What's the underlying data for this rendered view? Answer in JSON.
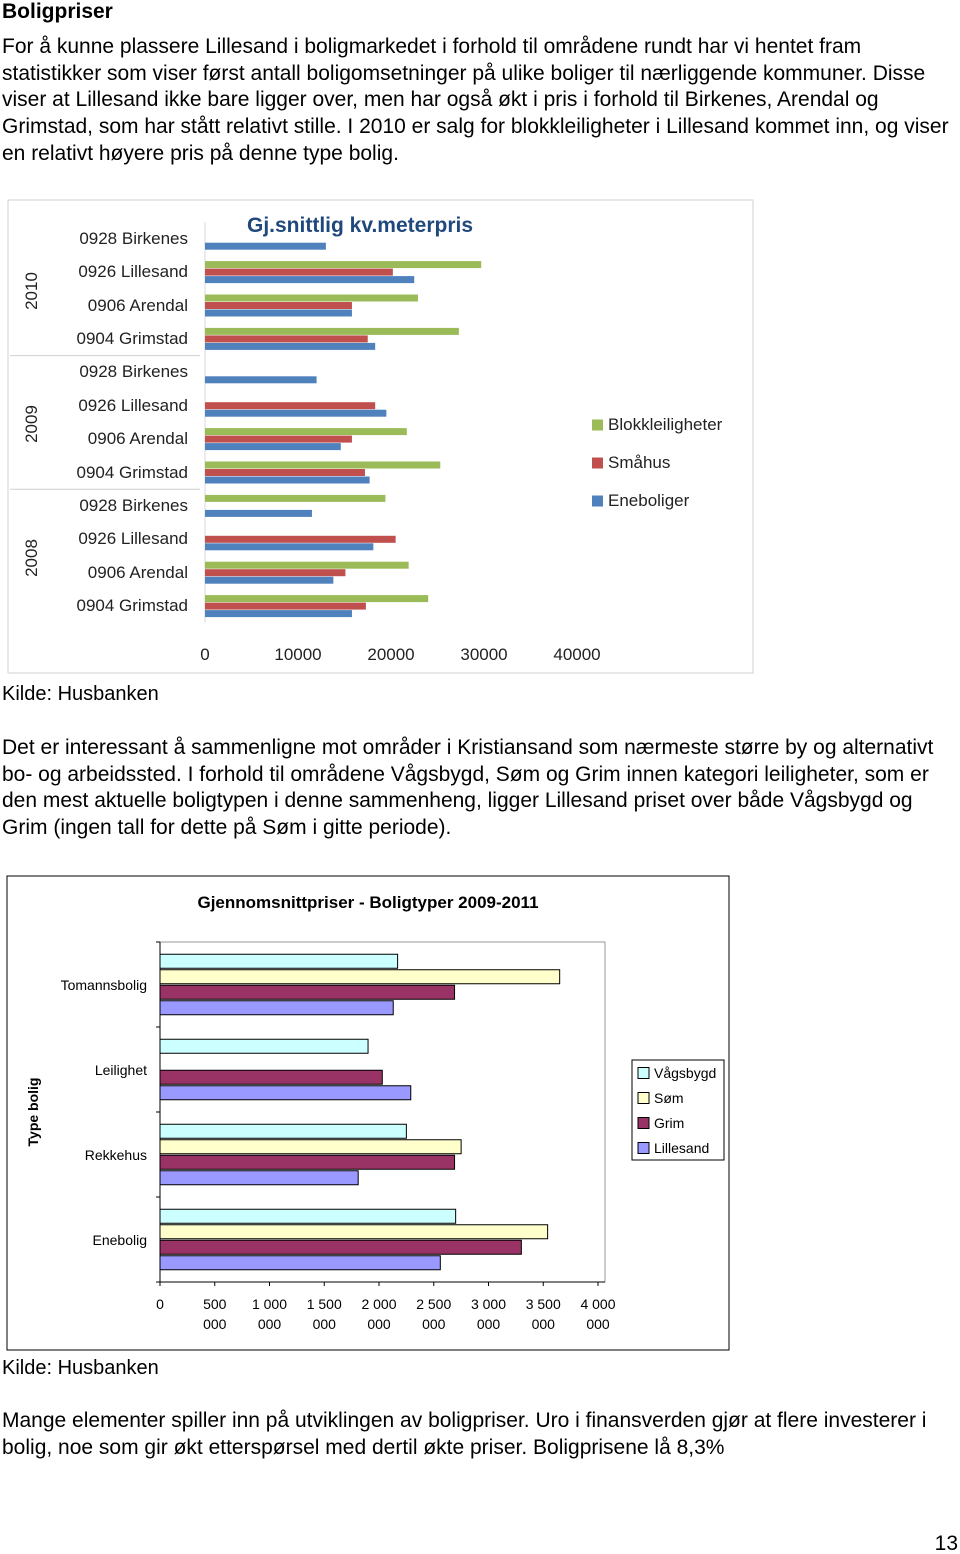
{
  "heading": "Boligpriser",
  "paragraphs": [
    "For å kunne plassere Lillesand i boligmarkedet i forhold til områdene rundt har vi hentet fram statistikker som viser først antall boligomsetninger på ulike boliger til nærliggende kommuner. Disse viser at Lillesand ikke bare ligger over, men har også økt i pris i forhold til Birkenes, Arendal og Grimstad, som har stått relativt stille. I 2010 er salg for blokkleiligheter i Lillesand kommet inn, og viser en relativt høyere pris på denne type bolig.",
    "Det er interessant å sammenligne mot områder i Kristiansand som nærmeste større by og alternativt bo- og arbeidssted. I forhold til områdene Vågsbygd, Søm og Grim innen kategori leiligheter, som er den mest aktuelle boligtypen i denne sammenheng, ligger Lillesand priset over både Vågsbygd og Grim (ingen tall for dette på Søm i gitte periode).",
    "Mange elementer spiller inn på utviklingen av boligpriser. Uro i finansverden gjør at flere investerer i bolig, noe som gir økt etterspørsel med dertil økte priser. Boligprisene lå 8,3%"
  ],
  "sources": [
    "Kilde: Husbanken",
    "Kilde: Husbanken"
  ],
  "page_number": "13",
  "chart_data": [
    {
      "type": "bar",
      "orientation": "horizontal",
      "title": "Gj.snittlig kv.meterpris",
      "groups": [
        "2010",
        "2009",
        "2008"
      ],
      "categories": [
        "0928 Birkenes",
        "0926 Lillesand",
        "0906 Arendal",
        "0904 Grimstad",
        "0928 Birkenes",
        "0926 Lillesand",
        "0906 Arendal",
        "0904 Grimstad",
        "0928 Birkenes",
        "0926 Lillesand",
        "0906 Arendal",
        "0904 Grimstad"
      ],
      "series": [
        {
          "name": "Blokkleiligheter",
          "color": "#9bbb59",
          "values": [
            null,
            29700,
            22900,
            27300,
            null,
            null,
            21700,
            25300,
            19400,
            null,
            21900,
            24000
          ]
        },
        {
          "name": "Småhus",
          "color": "#c0504d",
          "values": [
            null,
            20200,
            15800,
            17500,
            null,
            18300,
            15800,
            17200,
            null,
            20500,
            15100,
            17300
          ]
        },
        {
          "name": "Eneboliger",
          "color": "#4f81bd",
          "values": [
            13000,
            22500,
            15800,
            18300,
            12000,
            19500,
            14600,
            17700,
            11500,
            18100,
            13800,
            15800
          ]
        }
      ],
      "xlim": [
        0,
        40000
      ],
      "xticks": [
        0,
        10000,
        20000,
        30000,
        40000
      ],
      "legend": "right"
    },
    {
      "type": "bar",
      "orientation": "horizontal",
      "title": "Gjennomsnittpriser - Boligtyper 2009-2011",
      "y_label": "Type bolig",
      "categories": [
        "Tomannsbolig",
        "Leilighet",
        "Rekkehus",
        "Enebolig"
      ],
      "series": [
        {
          "name": "Vågsbygd",
          "color": "#ccffff",
          "values": [
            2170000,
            1900000,
            2250000,
            2700000
          ]
        },
        {
          "name": "Søm",
          "color": "#ffffcc",
          "values": [
            3650000,
            null,
            2750000,
            3540000
          ]
        },
        {
          "name": "Grim",
          "color": "#993366",
          "values": [
            2690000,
            2030000,
            2690000,
            3300000
          ]
        },
        {
          "name": "Lillesand",
          "color": "#9999ff",
          "values": [
            2130000,
            2290000,
            1810000,
            2560000
          ]
        }
      ],
      "xlim": [
        0,
        4000000
      ],
      "xticks": [
        0,
        {
          "value": 500000,
          "label": "500 000"
        },
        {
          "value": 1000000,
          "label": "1 000 000"
        },
        {
          "value": 1500000,
          "label": "1 500 000"
        },
        {
          "value": 2000000,
          "label": "2 000 000"
        },
        {
          "value": 2500000,
          "label": "2 500 000"
        },
        {
          "value": 3000000,
          "label": "3 000 000"
        },
        {
          "value": 3500000,
          "label": "3 500 000"
        },
        {
          "value": 4000000,
          "label": "4 000 000"
        }
      ],
      "legend": "right"
    }
  ]
}
